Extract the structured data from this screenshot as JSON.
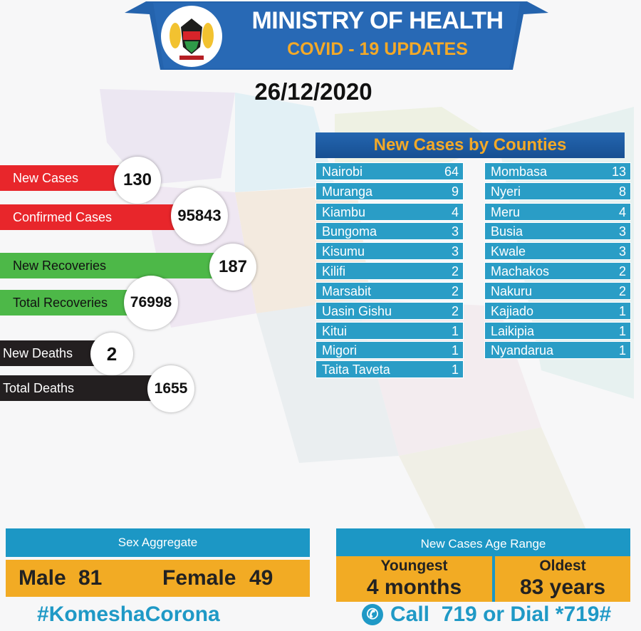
{
  "header": {
    "title": "MINISTRY OF HEALTH",
    "subtitle": "COVID - 19 UPDATES",
    "emblem_text": "HARAMBEE",
    "date": "26/12/2020"
  },
  "stats": [
    {
      "label": "New Cases",
      "value": "130",
      "color": "#e8262b"
    },
    {
      "label": "Confirmed Cases",
      "value": "95843",
      "color": "#e8262b"
    },
    {
      "label": "New Recoveries",
      "value": "187",
      "color": "#4db848"
    },
    {
      "label": "Total Recoveries",
      "value": "76998",
      "color": "#4db848"
    },
    {
      "label": "New Deaths",
      "value": "2",
      "color": "#231f20"
    },
    {
      "label": "Total Deaths",
      "value": "1655",
      "color": "#231f20"
    }
  ],
  "counties": {
    "title": "New Cases by Counties",
    "left": [
      {
        "name": "Nairobi",
        "value": "64"
      },
      {
        "name": "Muranga",
        "value": "9"
      },
      {
        "name": "Kiambu",
        "value": "4"
      },
      {
        "name": "Bungoma",
        "value": "3"
      },
      {
        "name": "Kisumu",
        "value": "3"
      },
      {
        "name": "Kilifi",
        "value": "2"
      },
      {
        "name": "Marsabit",
        "value": "2"
      },
      {
        "name": "Uasin Gishu",
        "value": "2"
      },
      {
        "name": "Kitui",
        "value": "1"
      },
      {
        "name": "Migori",
        "value": "1"
      },
      {
        "name": "Taita Taveta",
        "value": "1"
      }
    ],
    "right": [
      {
        "name": "Mombasa",
        "value": "13"
      },
      {
        "name": "Nyeri",
        "value": "8"
      },
      {
        "name": "Meru",
        "value": "4"
      },
      {
        "name": "Busia",
        "value": "3"
      },
      {
        "name": "Kwale",
        "value": "3"
      },
      {
        "name": "Machakos",
        "value": "2"
      },
      {
        "name": "Nakuru",
        "value": "2"
      },
      {
        "name": "Kajiado",
        "value": "1"
      },
      {
        "name": "Laikipia",
        "value": "1"
      },
      {
        "name": "Nyandarua",
        "value": "1"
      }
    ]
  },
  "sex": {
    "title": "Sex Aggregate",
    "male_label": "Male",
    "male": "81",
    "female_label": "Female",
    "female": "49"
  },
  "age": {
    "title": "New Cases Age Range",
    "youngest_label": "Youngest",
    "youngest": "4 months",
    "oldest_label": "Oldest",
    "oldest": "83 years"
  },
  "footer": {
    "hashtag": "#KomeshaCorona",
    "call": "Call  719 or Dial *719#"
  }
}
